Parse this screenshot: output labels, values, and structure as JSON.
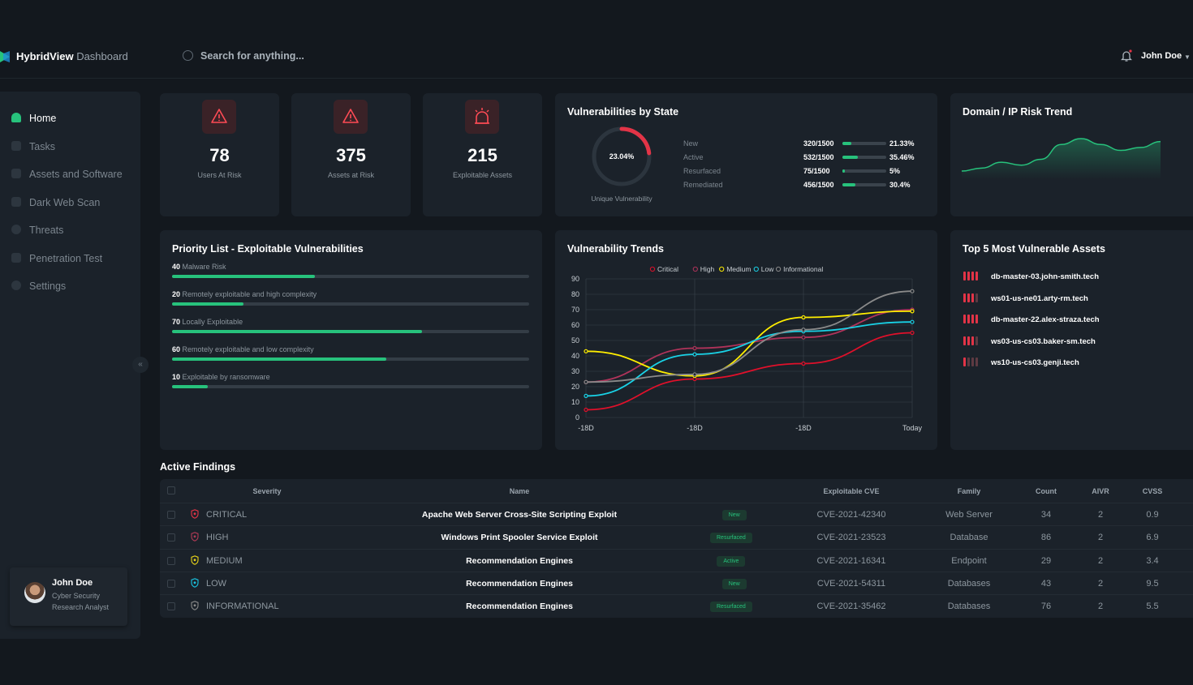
{
  "header": {
    "brand": "HybridView",
    "brand_sub": "Dashboard",
    "search_placeholder": "Search for anything...",
    "user_name": "John Doe"
  },
  "sidebar": {
    "items": [
      {
        "label": "Home",
        "icon": "home-icon",
        "active": true
      },
      {
        "label": "Tasks",
        "icon": "tasks-icon"
      },
      {
        "label": "Assets and Software",
        "icon": "grid-icon"
      },
      {
        "label": "Dark Web Scan",
        "icon": "scan-icon"
      },
      {
        "label": "Threats",
        "icon": "threat-icon"
      },
      {
        "label": "Penetration Test",
        "icon": "pentest-icon"
      },
      {
        "label": "Settings",
        "icon": "gear-icon"
      }
    ],
    "profile": {
      "name": "John Doe",
      "role": "Cyber Security Research Analyst"
    }
  },
  "kpis": [
    {
      "value": "78",
      "label": "Users At Risk",
      "icon": "warning-icon"
    },
    {
      "value": "375",
      "label": "Assets at Risk",
      "icon": "warning-icon"
    },
    {
      "value": "215",
      "label": "Exploitable Assets",
      "icon": "siren-icon"
    }
  ],
  "vuln_state": {
    "title": "Vulnerabilities by State",
    "donut_value": "23.04%",
    "donut_fraction": 0.2304,
    "donut_label": "Unique Vulnerability",
    "rows": [
      {
        "label": "New",
        "value": "320/1500",
        "pct": "21.33%",
        "fraction": 0.2133
      },
      {
        "label": "Active",
        "value": "532/1500",
        "pct": "35.46%",
        "fraction": 0.3546
      },
      {
        "label": "Resurfaced",
        "value": "75/1500",
        "pct": "5%",
        "fraction": 0.05
      },
      {
        "label": "Remediated",
        "value": "456/1500",
        "pct": "30.4%",
        "fraction": 0.304
      }
    ]
  },
  "risk_trend": {
    "title": "Domain / IP Risk Trend",
    "values": [
      3,
      4,
      6,
      5,
      7,
      12,
      14,
      12,
      10,
      11,
      13
    ]
  },
  "priority": {
    "title": "Priority List - Exploitable Vulnerabilities",
    "items": [
      {
        "count": "40",
        "label": "Malware Risk",
        "fraction": 0.4
      },
      {
        "count": "20",
        "label": "Remotely exploitable and high complexity",
        "fraction": 0.2
      },
      {
        "count": "70",
        "label": "Locally Exploitable",
        "fraction": 0.7
      },
      {
        "count": "60",
        "label": "Remotely exploitable and low complexity",
        "fraction": 0.6
      },
      {
        "count": "10",
        "label": "Exploitable by ransomware",
        "fraction": 0.1
      }
    ]
  },
  "chart_data": {
    "type": "line",
    "title": "Vulnerability Trends",
    "categories": [
      "-18D",
      "-18D",
      "-18D",
      "Today"
    ],
    "x": [
      0,
      1,
      2,
      3
    ],
    "ylim": [
      0,
      90
    ],
    "yticks": [
      0,
      10,
      20,
      30,
      40,
      50,
      60,
      70,
      80,
      90
    ],
    "grid": true,
    "legend": "top",
    "series": [
      {
        "name": "Critical",
        "color": "#e0102a",
        "values": [
          5,
          25,
          35,
          55
        ]
      },
      {
        "name": "High",
        "color": "#b0335a",
        "values": [
          23,
          45,
          52,
          70
        ]
      },
      {
        "name": "Medium",
        "color": "#ffee00",
        "values": [
          43,
          27,
          65,
          69
        ]
      },
      {
        "name": "Low",
        "color": "#19d2e6",
        "values": [
          14,
          41,
          56,
          62
        ]
      },
      {
        "name": "Informational",
        "color": "#8a8a8a",
        "values": [
          23,
          28,
          57,
          82
        ]
      }
    ]
  },
  "top_assets": {
    "title": "Top 5 Most Vulnerable Assets",
    "items": [
      {
        "name": "db-master-03.john-smith.tech",
        "level": 4
      },
      {
        "name": "ws01-us-ne01.arty-rm.tech",
        "level": 3
      },
      {
        "name": "db-master-22.alex-straza.tech",
        "level": 4
      },
      {
        "name": "ws03-us-cs03.baker-sm.tech",
        "level": 3
      },
      {
        "name": "ws10-us-cs03.genji.tech",
        "level": 1
      }
    ]
  },
  "findings": {
    "title": "Active Findings",
    "columns": {
      "severity": "Severity",
      "name": "Name",
      "cve": "Exploitable CVE",
      "family": "Family",
      "count": "Count",
      "aivr": "AIVR",
      "cvss": "CVSS"
    },
    "rows": [
      {
        "severity": "CRITICAL",
        "sev_color": "#e33447",
        "name": "Apache Web Server Cross-Site Scripting Exploit",
        "state": "New",
        "cve": "CVE-2021-42340",
        "family": "Web Server",
        "count": "34",
        "aivr": "2",
        "cvss": "0.9"
      },
      {
        "severity": "HIGH",
        "sev_color": "#b03a55",
        "name": "Windows Print Spooler Service Exploit",
        "state": "Resurfaced",
        "cve": "CVE-2021-23523",
        "family": "Database",
        "count": "86",
        "aivr": "2",
        "cvss": "6.9"
      },
      {
        "severity": "MEDIUM",
        "sev_color": "#e6d21a",
        "name": "Recommendation Engines",
        "state": "Active",
        "cve": "CVE-2021-16341",
        "family": "Endpoint",
        "count": "29",
        "aivr": "2",
        "cvss": "3.4"
      },
      {
        "severity": "LOW",
        "sev_color": "#19c4e0",
        "name": "Recommendation Engines",
        "state": "New",
        "cve": "CVE-2021-54311",
        "family": "Databases",
        "count": "43",
        "aivr": "2",
        "cvss": "9.5"
      },
      {
        "severity": "INFORMATIONAL",
        "sev_color": "#8a8a8a",
        "name": "Recommendation Engines",
        "state": "Resurfaced",
        "cve": "CVE-2021-35462",
        "family": "Databases",
        "count": "76",
        "aivr": "2",
        "cvss": "5.5"
      }
    ]
  }
}
